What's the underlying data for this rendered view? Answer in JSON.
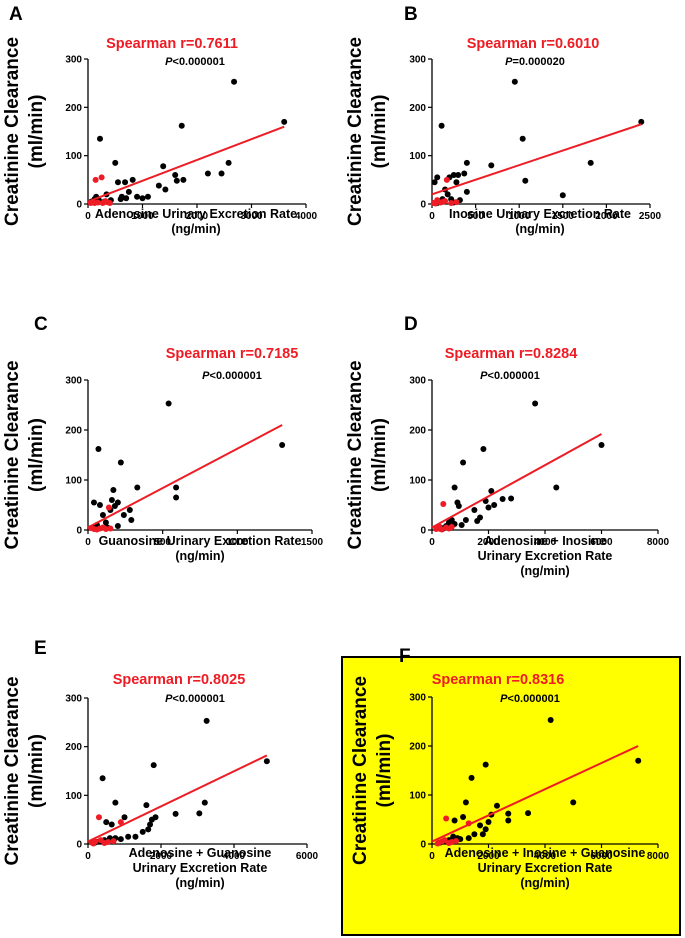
{
  "colors": {
    "highlight_bg": "#ffff00",
    "fit_line": "#ee1c24",
    "black_point": "#000000",
    "red_point": "#ee1c24",
    "stat_title": "#ee1c24"
  },
  "chart_data": [
    {
      "type": "scatter",
      "panel": "A",
      "title": "Spearman r=0.7611",
      "p_prefix": "P",
      "p_rest": "<0.000001",
      "xlabel": [
        "Adenosine Urinary Excretion Rate",
        "(ng/min)"
      ],
      "ylabel": [
        "Creatinine Clearance",
        "(ml/min)"
      ],
      "xlim": [
        0,
        4000
      ],
      "ylim": [
        0,
        300
      ],
      "xticks": [
        0,
        1000,
        2000,
        3000,
        4000
      ],
      "yticks": [
        0,
        100,
        200,
        300
      ],
      "fit": [
        [
          0,
          5
        ],
        [
          3600,
          160
        ]
      ],
      "series": [
        {
          "name": "black",
          "color": "black",
          "points": [
            [
              2680,
              253
            ],
            [
              3600,
              170
            ],
            [
              220,
              135
            ],
            [
              1720,
              162
            ],
            [
              500,
              85
            ],
            [
              1630,
              48
            ],
            [
              1380,
              78
            ],
            [
              1420,
              30
            ],
            [
              1600,
              60
            ],
            [
              1750,
              50
            ],
            [
              2200,
              63
            ],
            [
              2450,
              63
            ],
            [
              2580,
              85
            ],
            [
              750,
              25
            ],
            [
              900,
              15
            ],
            [
              620,
              15
            ],
            [
              550,
              45
            ],
            [
              820,
              50
            ],
            [
              1100,
              15
            ],
            [
              340,
              20
            ],
            [
              60,
              5
            ],
            [
              120,
              10
            ],
            [
              200,
              8
            ],
            [
              680,
              45
            ],
            [
              1300,
              38
            ],
            [
              600,
              10
            ],
            [
              420,
              8
            ],
            [
              1000,
              12
            ],
            [
              700,
              12
            ],
            [
              150,
              15
            ],
            [
              300,
              5
            ]
          ]
        },
        {
          "name": "red",
          "color": "red",
          "points": [
            [
              140,
              50
            ],
            [
              250,
              55
            ],
            [
              50,
              2
            ],
            [
              90,
              4
            ],
            [
              180,
              3
            ],
            [
              270,
              2
            ],
            [
              350,
              4
            ],
            [
              400,
              2
            ],
            [
              320,
              6
            ],
            [
              120,
              2
            ]
          ]
        }
      ]
    },
    {
      "type": "scatter",
      "panel": "B",
      "title": "Spearman r=0.6010",
      "p_prefix": "P",
      "p_rest": "=0.000020",
      "xlabel": [
        "Inosine Urinary Excretion Rate",
        "(ng/min)"
      ],
      "ylabel": [
        "Creatinine Clearance",
        "(ml/min)"
      ],
      "xlim": [
        0,
        2500
      ],
      "ylim": [
        0,
        300
      ],
      "xticks": [
        0,
        500,
        1000,
        1500,
        2000,
        2500
      ],
      "yticks": [
        0,
        100,
        200,
        300
      ],
      "fit": [
        [
          0,
          20
        ],
        [
          2400,
          165
        ]
      ],
      "series": [
        {
          "name": "black",
          "color": "black",
          "points": [
            [
              950,
              253
            ],
            [
              2400,
              170
            ],
            [
              110,
              162
            ],
            [
              1040,
              135
            ],
            [
              1820,
              85
            ],
            [
              680,
              80
            ],
            [
              400,
              85
            ],
            [
              370,
              63
            ],
            [
              300,
              60
            ],
            [
              250,
              60
            ],
            [
              200,
              55
            ],
            [
              60,
              55
            ],
            [
              30,
              45
            ],
            [
              1070,
              48
            ],
            [
              1500,
              18
            ],
            [
              400,
              25
            ],
            [
              150,
              30
            ],
            [
              120,
              10
            ],
            [
              100,
              5
            ],
            [
              220,
              10
            ],
            [
              250,
              3
            ],
            [
              180,
              20
            ],
            [
              60,
              2
            ],
            [
              320,
              8
            ],
            [
              280,
              45
            ]
          ]
        },
        {
          "name": "red",
          "color": "red",
          "points": [
            [
              170,
              50
            ],
            [
              50,
              4
            ],
            [
              100,
              3
            ],
            [
              20,
              2
            ],
            [
              130,
              5
            ],
            [
              60,
              8
            ],
            [
              150,
              6
            ],
            [
              220,
              2
            ],
            [
              40,
              1
            ],
            [
              280,
              4
            ]
          ]
        }
      ]
    },
    {
      "type": "scatter",
      "panel": "C",
      "title": "Spearman r=0.7185",
      "p_prefix": "P",
      "p_rest": "<0.000001",
      "xlabel": [
        "Guanosine Urinary Excretion Rate",
        "(ng/min)"
      ],
      "ylabel": [
        "Creatinine Clearance",
        "(ml/min)"
      ],
      "xlim": [
        0,
        1500
      ],
      "ylim": [
        0,
        300
      ],
      "xticks": [
        0,
        500,
        1000,
        1500
      ],
      "yticks": [
        0,
        100,
        200,
        300
      ],
      "fit": [
        [
          0,
          5
        ],
        [
          1300,
          210
        ]
      ],
      "series": [
        {
          "name": "black",
          "color": "black",
          "points": [
            [
              540,
              253
            ],
            [
              1300,
              170
            ],
            [
              70,
              162
            ],
            [
              220,
              135
            ],
            [
              590,
              85
            ],
            [
              590,
              65
            ],
            [
              330,
              85
            ],
            [
              170,
              80
            ],
            [
              40,
              55
            ],
            [
              80,
              50
            ],
            [
              200,
              55
            ],
            [
              160,
              60
            ],
            [
              180,
              48
            ],
            [
              280,
              40
            ],
            [
              290,
              20
            ],
            [
              150,
              40
            ],
            [
              100,
              30
            ],
            [
              120,
              15
            ],
            [
              60,
              10
            ],
            [
              30,
              5
            ],
            [
              200,
              8
            ],
            [
              240,
              30
            ],
            [
              50,
              8
            ],
            [
              130,
              5
            ]
          ]
        },
        {
          "name": "red",
          "color": "red",
          "points": [
            [
              140,
              45
            ],
            [
              40,
              2
            ],
            [
              80,
              3
            ],
            [
              100,
              5
            ],
            [
              120,
              2
            ],
            [
              150,
              3
            ],
            [
              60,
              1
            ],
            [
              20,
              4
            ]
          ]
        }
      ]
    },
    {
      "type": "scatter",
      "panel": "D",
      "title": "Spearman r=0.8284",
      "p_prefix": "P",
      "p_rest": "<0.000001",
      "xlabel": [
        "Adenosine + Inosine",
        "Urinary Excretion Rate",
        "(ng/min)"
      ],
      "ylabel": [
        "Creatinine Clearance",
        "(ml/min)"
      ],
      "xlim": [
        0,
        8000
      ],
      "ylim": [
        0,
        300
      ],
      "xticks": [
        0,
        2000,
        4000,
        6000,
        8000
      ],
      "yticks": [
        0,
        100,
        200,
        300
      ],
      "fit": [
        [
          0,
          5
        ],
        [
          6000,
          192
        ]
      ],
      "series": [
        {
          "name": "black",
          "color": "black",
          "points": [
            [
              3650,
              253
            ],
            [
              6000,
              170
            ],
            [
              1820,
              162
            ],
            [
              1100,
              135
            ],
            [
              4400,
              85
            ],
            [
              800,
              85
            ],
            [
              2800,
              63
            ],
            [
              2500,
              62
            ],
            [
              2100,
              78
            ],
            [
              1900,
              58
            ],
            [
              2000,
              45
            ],
            [
              1600,
              18
            ],
            [
              1700,
              25
            ],
            [
              900,
              55
            ],
            [
              700,
              20
            ],
            [
              1050,
              10
            ],
            [
              500,
              8
            ],
            [
              600,
              15
            ],
            [
              1200,
              20
            ],
            [
              800,
              12
            ],
            [
              300,
              5
            ],
            [
              2200,
              50
            ],
            [
              1500,
              40
            ],
            [
              950,
              48
            ],
            [
              400,
              3
            ]
          ]
        },
        {
          "name": "red",
          "color": "red",
          "points": [
            [
              400,
              52
            ],
            [
              200,
              4
            ],
            [
              300,
              2
            ],
            [
              500,
              5
            ],
            [
              600,
              3
            ],
            [
              700,
              6
            ],
            [
              350,
              1
            ],
            [
              250,
              7
            ],
            [
              150,
              2
            ]
          ]
        }
      ]
    },
    {
      "type": "scatter",
      "panel": "E",
      "title": "Spearman r=0.8025",
      "p_prefix": "P",
      "p_rest": "<0.000001",
      "xlabel": [
        "Adenosine + Guanosine",
        "Urinary Excretion Rate",
        "(ng/min)"
      ],
      "ylabel": [
        "Creatinine Clearance",
        "(ml/min)"
      ],
      "xlim": [
        0,
        6000
      ],
      "ylim": [
        0,
        300
      ],
      "xticks": [
        0,
        2000,
        4000,
        6000
      ],
      "yticks": [
        0,
        100,
        200,
        300
      ],
      "fit": [
        [
          0,
          5
        ],
        [
          4900,
          182
        ]
      ],
      "series": [
        {
          "name": "black",
          "color": "black",
          "points": [
            [
              3250,
              253
            ],
            [
              4900,
              170
            ],
            [
              1800,
              162
            ],
            [
              400,
              135
            ],
            [
              3200,
              85
            ],
            [
              750,
              85
            ],
            [
              3050,
              63
            ],
            [
              2400,
              62
            ],
            [
              1600,
              80
            ],
            [
              1750,
              50
            ],
            [
              1650,
              30
            ],
            [
              1700,
              40
            ],
            [
              1500,
              25
            ],
            [
              1000,
              55
            ],
            [
              650,
              40
            ],
            [
              1100,
              15
            ],
            [
              900,
              10
            ],
            [
              450,
              8
            ],
            [
              600,
              12
            ],
            [
              1300,
              15
            ],
            [
              750,
              12
            ],
            [
              300,
              5
            ],
            [
              1850,
              55
            ],
            [
              500,
              45
            ],
            [
              200,
              3
            ]
          ]
        },
        {
          "name": "red",
          "color": "red",
          "points": [
            [
              300,
              55
            ],
            [
              100,
              3
            ],
            [
              200,
              5
            ],
            [
              450,
              2
            ],
            [
              550,
              4
            ],
            [
              700,
              6
            ],
            [
              150,
              1
            ],
            [
              350,
              8
            ],
            [
              900,
              45
            ]
          ]
        }
      ]
    },
    {
      "type": "scatter",
      "panel": "F",
      "highlighted": true,
      "title": "Spearman r=0.8316",
      "p_prefix": "P",
      "p_rest": "<0.000001",
      "xlabel": [
        "Adenosine + Inosine + Guanosine",
        "Urinary Excretion Rate",
        "(ng/min)"
      ],
      "ylabel": [
        "Creatinine Clearance",
        "(ml/min)"
      ],
      "xlim": [
        0,
        8000
      ],
      "ylim": [
        0,
        300
      ],
      "xticks": [
        0,
        2000,
        4000,
        6000,
        8000
      ],
      "yticks": [
        0,
        100,
        200,
        300
      ],
      "fit": [
        [
          0,
          5
        ],
        [
          7300,
          200
        ]
      ],
      "series": [
        {
          "name": "black",
          "color": "black",
          "points": [
            [
              4200,
              253
            ],
            [
              7300,
              170
            ],
            [
              1900,
              162
            ],
            [
              1400,
              135
            ],
            [
              5000,
              85
            ],
            [
              1200,
              85
            ],
            [
              3400,
              63
            ],
            [
              2700,
              62
            ],
            [
              2300,
              78
            ],
            [
              2100,
              60
            ],
            [
              2000,
              45
            ],
            [
              1800,
              20
            ],
            [
              1900,
              30
            ],
            [
              1100,
              55
            ],
            [
              800,
              48
            ],
            [
              1300,
              12
            ],
            [
              1000,
              10
            ],
            [
              600,
              8
            ],
            [
              750,
              15
            ],
            [
              1500,
              20
            ],
            [
              900,
              12
            ],
            [
              400,
              5
            ],
            [
              2700,
              48
            ],
            [
              1700,
              38
            ],
            [
              300,
              3
            ]
          ]
        },
        {
          "name": "red",
          "color": "red",
          "points": [
            [
              500,
              52
            ],
            [
              250,
              3
            ],
            [
              350,
              5
            ],
            [
              600,
              2
            ],
            [
              700,
              4
            ],
            [
              850,
              6
            ],
            [
              200,
              1
            ],
            [
              450,
              8
            ],
            [
              1300,
              42
            ]
          ]
        }
      ]
    }
  ]
}
